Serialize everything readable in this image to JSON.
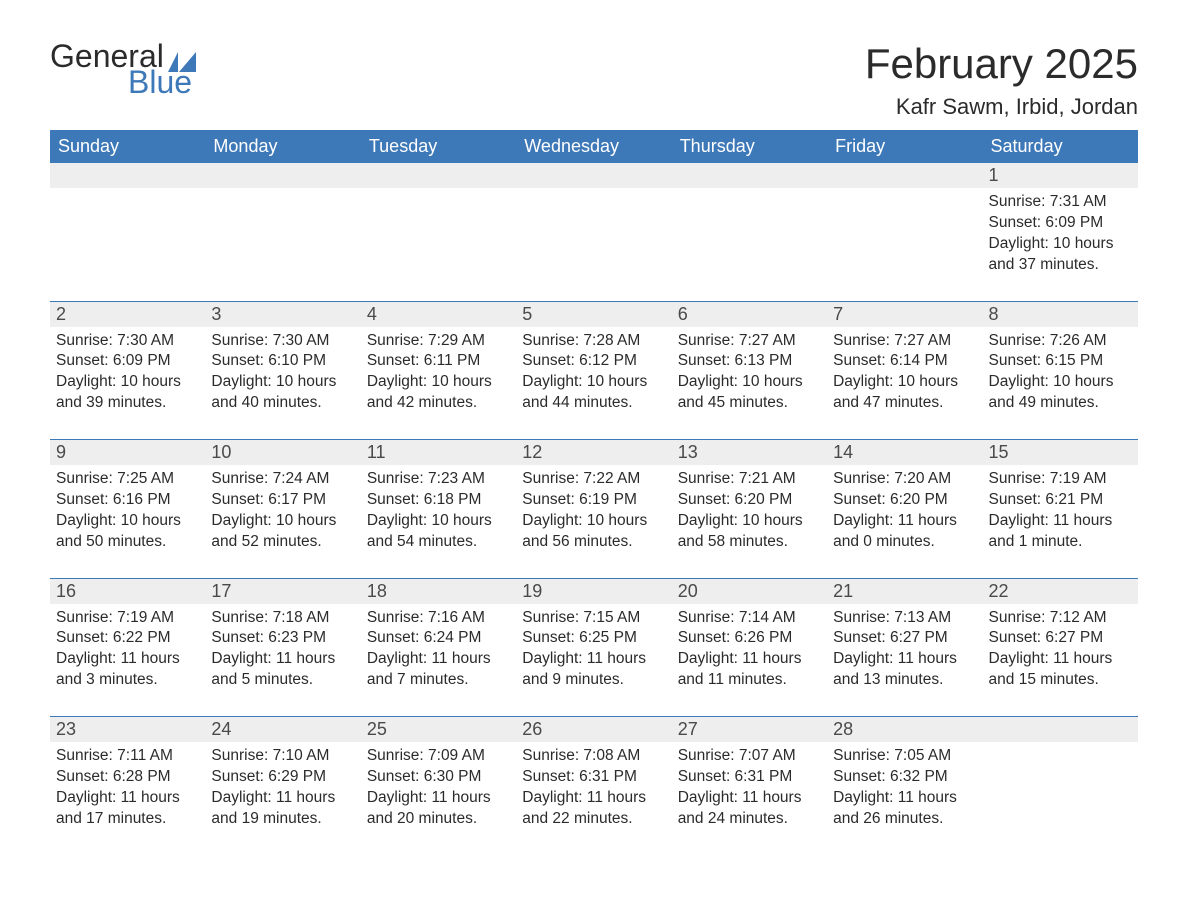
{
  "brand": {
    "word1": "General",
    "word2": "Blue",
    "accent_color": "#3d78b8"
  },
  "header": {
    "month_year": "February 2025",
    "location": "Kafr Sawm, Irbid, Jordan"
  },
  "colors": {
    "header_bg": "#3d78b8",
    "header_text": "#ffffff",
    "daynum_bg": "#eeeeee",
    "text": "#2b2b2b",
    "page_bg": "#ffffff"
  },
  "weekdays": [
    "Sunday",
    "Monday",
    "Tuesday",
    "Wednesday",
    "Thursday",
    "Friday",
    "Saturday"
  ],
  "weeks": [
    [
      null,
      null,
      null,
      null,
      null,
      null,
      {
        "n": "1",
        "sunrise": "Sunrise: 7:31 AM",
        "sunset": "Sunset: 6:09 PM",
        "daylight1": "Daylight: 10 hours",
        "daylight2": "and 37 minutes."
      }
    ],
    [
      {
        "n": "2",
        "sunrise": "Sunrise: 7:30 AM",
        "sunset": "Sunset: 6:09 PM",
        "daylight1": "Daylight: 10 hours",
        "daylight2": "and 39 minutes."
      },
      {
        "n": "3",
        "sunrise": "Sunrise: 7:30 AM",
        "sunset": "Sunset: 6:10 PM",
        "daylight1": "Daylight: 10 hours",
        "daylight2": "and 40 minutes."
      },
      {
        "n": "4",
        "sunrise": "Sunrise: 7:29 AM",
        "sunset": "Sunset: 6:11 PM",
        "daylight1": "Daylight: 10 hours",
        "daylight2": "and 42 minutes."
      },
      {
        "n": "5",
        "sunrise": "Sunrise: 7:28 AM",
        "sunset": "Sunset: 6:12 PM",
        "daylight1": "Daylight: 10 hours",
        "daylight2": "and 44 minutes."
      },
      {
        "n": "6",
        "sunrise": "Sunrise: 7:27 AM",
        "sunset": "Sunset: 6:13 PM",
        "daylight1": "Daylight: 10 hours",
        "daylight2": "and 45 minutes."
      },
      {
        "n": "7",
        "sunrise": "Sunrise: 7:27 AM",
        "sunset": "Sunset: 6:14 PM",
        "daylight1": "Daylight: 10 hours",
        "daylight2": "and 47 minutes."
      },
      {
        "n": "8",
        "sunrise": "Sunrise: 7:26 AM",
        "sunset": "Sunset: 6:15 PM",
        "daylight1": "Daylight: 10 hours",
        "daylight2": "and 49 minutes."
      }
    ],
    [
      {
        "n": "9",
        "sunrise": "Sunrise: 7:25 AM",
        "sunset": "Sunset: 6:16 PM",
        "daylight1": "Daylight: 10 hours",
        "daylight2": "and 50 minutes."
      },
      {
        "n": "10",
        "sunrise": "Sunrise: 7:24 AM",
        "sunset": "Sunset: 6:17 PM",
        "daylight1": "Daylight: 10 hours",
        "daylight2": "and 52 minutes."
      },
      {
        "n": "11",
        "sunrise": "Sunrise: 7:23 AM",
        "sunset": "Sunset: 6:18 PM",
        "daylight1": "Daylight: 10 hours",
        "daylight2": "and 54 minutes."
      },
      {
        "n": "12",
        "sunrise": "Sunrise: 7:22 AM",
        "sunset": "Sunset: 6:19 PM",
        "daylight1": "Daylight: 10 hours",
        "daylight2": "and 56 minutes."
      },
      {
        "n": "13",
        "sunrise": "Sunrise: 7:21 AM",
        "sunset": "Sunset: 6:20 PM",
        "daylight1": "Daylight: 10 hours",
        "daylight2": "and 58 minutes."
      },
      {
        "n": "14",
        "sunrise": "Sunrise: 7:20 AM",
        "sunset": "Sunset: 6:20 PM",
        "daylight1": "Daylight: 11 hours",
        "daylight2": "and 0 minutes."
      },
      {
        "n": "15",
        "sunrise": "Sunrise: 7:19 AM",
        "sunset": "Sunset: 6:21 PM",
        "daylight1": "Daylight: 11 hours",
        "daylight2": "and 1 minute."
      }
    ],
    [
      {
        "n": "16",
        "sunrise": "Sunrise: 7:19 AM",
        "sunset": "Sunset: 6:22 PM",
        "daylight1": "Daylight: 11 hours",
        "daylight2": "and 3 minutes."
      },
      {
        "n": "17",
        "sunrise": "Sunrise: 7:18 AM",
        "sunset": "Sunset: 6:23 PM",
        "daylight1": "Daylight: 11 hours",
        "daylight2": "and 5 minutes."
      },
      {
        "n": "18",
        "sunrise": "Sunrise: 7:16 AM",
        "sunset": "Sunset: 6:24 PM",
        "daylight1": "Daylight: 11 hours",
        "daylight2": "and 7 minutes."
      },
      {
        "n": "19",
        "sunrise": "Sunrise: 7:15 AM",
        "sunset": "Sunset: 6:25 PM",
        "daylight1": "Daylight: 11 hours",
        "daylight2": "and 9 minutes."
      },
      {
        "n": "20",
        "sunrise": "Sunrise: 7:14 AM",
        "sunset": "Sunset: 6:26 PM",
        "daylight1": "Daylight: 11 hours",
        "daylight2": "and 11 minutes."
      },
      {
        "n": "21",
        "sunrise": "Sunrise: 7:13 AM",
        "sunset": "Sunset: 6:27 PM",
        "daylight1": "Daylight: 11 hours",
        "daylight2": "and 13 minutes."
      },
      {
        "n": "22",
        "sunrise": "Sunrise: 7:12 AM",
        "sunset": "Sunset: 6:27 PM",
        "daylight1": "Daylight: 11 hours",
        "daylight2": "and 15 minutes."
      }
    ],
    [
      {
        "n": "23",
        "sunrise": "Sunrise: 7:11 AM",
        "sunset": "Sunset: 6:28 PM",
        "daylight1": "Daylight: 11 hours",
        "daylight2": "and 17 minutes."
      },
      {
        "n": "24",
        "sunrise": "Sunrise: 7:10 AM",
        "sunset": "Sunset: 6:29 PM",
        "daylight1": "Daylight: 11 hours",
        "daylight2": "and 19 minutes."
      },
      {
        "n": "25",
        "sunrise": "Sunrise: 7:09 AM",
        "sunset": "Sunset: 6:30 PM",
        "daylight1": "Daylight: 11 hours",
        "daylight2": "and 20 minutes."
      },
      {
        "n": "26",
        "sunrise": "Sunrise: 7:08 AM",
        "sunset": "Sunset: 6:31 PM",
        "daylight1": "Daylight: 11 hours",
        "daylight2": "and 22 minutes."
      },
      {
        "n": "27",
        "sunrise": "Sunrise: 7:07 AM",
        "sunset": "Sunset: 6:31 PM",
        "daylight1": "Daylight: 11 hours",
        "daylight2": "and 24 minutes."
      },
      {
        "n": "28",
        "sunrise": "Sunrise: 7:05 AM",
        "sunset": "Sunset: 6:32 PM",
        "daylight1": "Daylight: 11 hours",
        "daylight2": "and 26 minutes."
      },
      null
    ]
  ]
}
